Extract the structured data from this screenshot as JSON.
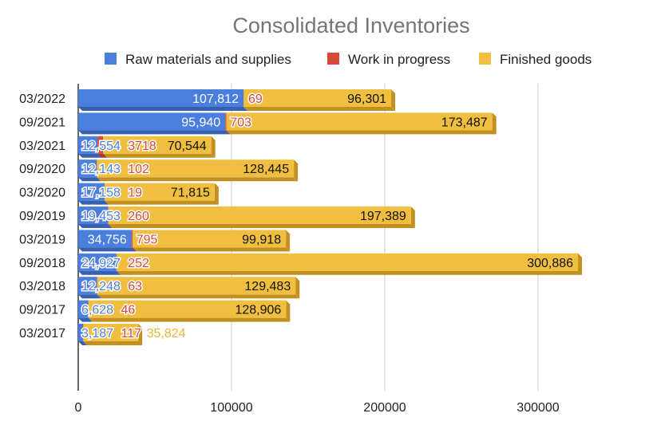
{
  "chart_data": {
    "type": "bar",
    "orientation": "horizontal",
    "stacked": true,
    "title": "Consolidated Inventories",
    "xlabel": "",
    "ylabel": "",
    "xlim": [
      0,
      340000
    ],
    "xticks": [
      "0",
      "100000",
      "200000",
      "300000"
    ],
    "xtick_values": [
      0,
      100000,
      200000,
      300000
    ],
    "grid": true,
    "legend_position": "top",
    "categories": [
      "03/2022",
      "09/2021",
      "03/2021",
      "09/2020",
      "03/2020",
      "09/2019",
      "03/2019",
      "09/2018",
      "03/2018",
      "09/2017",
      "03/2017"
    ],
    "series": [
      {
        "name": "Raw materials and supplies",
        "color": "#4a7fe0",
        "values": [
          107812,
          95940,
          12554,
          12143,
          17158,
          19453,
          34756,
          24927,
          12248,
          6628,
          3187
        ],
        "labels": [
          "107,812",
          "95,940",
          "12,554",
          "12,143",
          "17,158",
          "19,453",
          "34,756",
          "24,927",
          "12,248",
          "6,628",
          "3,187"
        ]
      },
      {
        "name": "Work in progress",
        "color": "#d9493a",
        "values": [
          69,
          703,
          3718,
          102,
          19,
          260,
          795,
          252,
          63,
          46,
          117
        ],
        "labels": [
          "69",
          "703",
          "3718",
          "102",
          "19",
          "260",
          "795",
          "252",
          "63",
          "46",
          "117"
        ]
      },
      {
        "name": "Finished goods",
        "color": "#f1bf3f",
        "values": [
          96301,
          173487,
          70544,
          128445,
          71815,
          197389,
          99918,
          300886,
          129483,
          128906,
          35824
        ],
        "labels": [
          "96,301",
          "173,487",
          "70,544",
          "128,445",
          "71,815",
          "197,389",
          "99,918",
          "300,886",
          "129,483",
          "128,906",
          "35,824"
        ]
      }
    ]
  }
}
